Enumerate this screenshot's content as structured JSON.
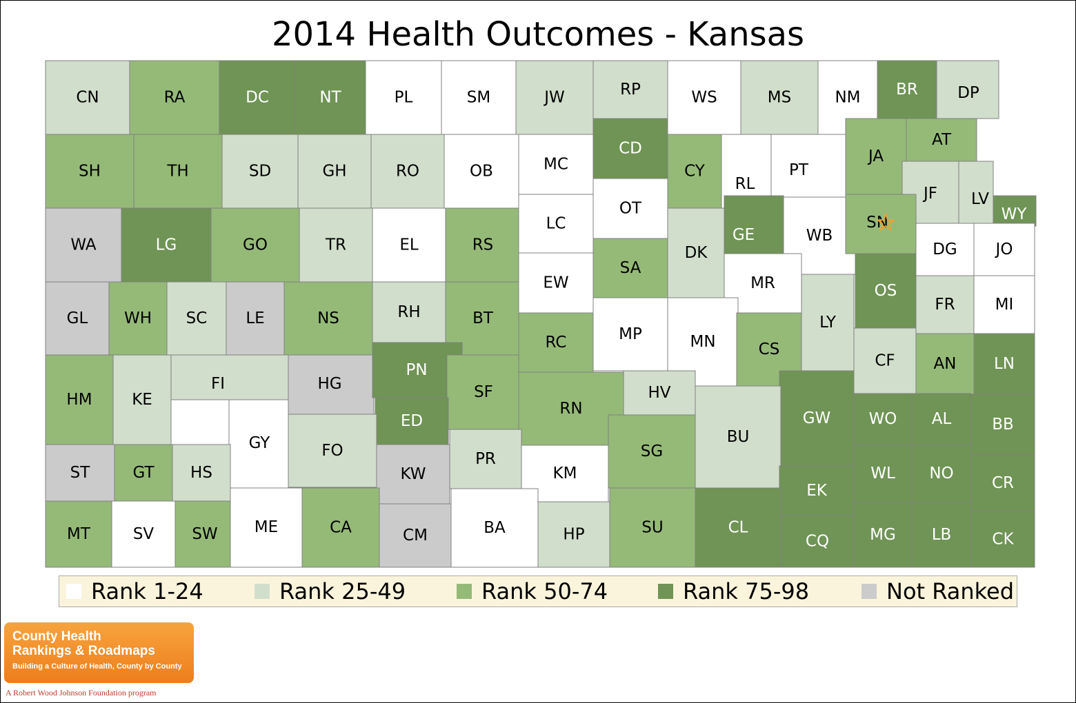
{
  "title": "2014 Health Outcomes - Kansas",
  "colors": {
    "r1": "#ffffff",
    "r2": "#d1decb",
    "r3": "#95ba78",
    "r4": "#6f9455",
    "nr": "#cbcbcb",
    "border": "#808080"
  },
  "legend": [
    {
      "label": "Rank 1-24",
      "cls": "r1"
    },
    {
      "label": "Rank 25-49",
      "cls": "r2"
    },
    {
      "label": "Rank 50-74",
      "cls": "r3"
    },
    {
      "label": "Rank 75-98",
      "cls": "r4"
    },
    {
      "label": "Not Ranked",
      "cls": "nr"
    }
  ],
  "counties": [
    {
      "code": "CN",
      "cls": "r2"
    },
    {
      "code": "RA",
      "cls": "r3"
    },
    {
      "code": "DC",
      "cls": "r4"
    },
    {
      "code": "NT",
      "cls": "r4"
    },
    {
      "code": "PL",
      "cls": "r1"
    },
    {
      "code": "SM",
      "cls": "r1"
    },
    {
      "code": "JW",
      "cls": "r2"
    },
    {
      "code": "RP",
      "cls": "r2"
    },
    {
      "code": "WS",
      "cls": "r1"
    },
    {
      "code": "MS",
      "cls": "r2"
    },
    {
      "code": "NM",
      "cls": "r1"
    },
    {
      "code": "BR",
      "cls": "r4"
    },
    {
      "code": "DP",
      "cls": "r2"
    },
    {
      "code": "SH",
      "cls": "r3"
    },
    {
      "code": "TH",
      "cls": "r3"
    },
    {
      "code": "SD",
      "cls": "r2"
    },
    {
      "code": "GH",
      "cls": "r2"
    },
    {
      "code": "RO",
      "cls": "r2"
    },
    {
      "code": "OB",
      "cls": "r1"
    },
    {
      "code": "MC",
      "cls": "r1"
    },
    {
      "code": "CD",
      "cls": "r4"
    },
    {
      "code": "CY",
      "cls": "r3"
    },
    {
      "code": "RL",
      "cls": "r1"
    },
    {
      "code": "PT",
      "cls": "r1"
    },
    {
      "code": "JA",
      "cls": "r3"
    },
    {
      "code": "AT",
      "cls": "r3"
    },
    {
      "code": "JF",
      "cls": "r2"
    },
    {
      "code": "LV",
      "cls": "r2"
    },
    {
      "code": "WY",
      "cls": "r4"
    },
    {
      "code": "WA",
      "cls": "nr"
    },
    {
      "code": "LG",
      "cls": "r4"
    },
    {
      "code": "GO",
      "cls": "r3"
    },
    {
      "code": "TR",
      "cls": "r2"
    },
    {
      "code": "EL",
      "cls": "r1"
    },
    {
      "code": "RS",
      "cls": "r3"
    },
    {
      "code": "LC",
      "cls": "r1"
    },
    {
      "code": "OT",
      "cls": "r1"
    },
    {
      "code": "DK",
      "cls": "r2"
    },
    {
      "code": "GE",
      "cls": "r4"
    },
    {
      "code": "WB",
      "cls": "r1"
    },
    {
      "code": "SN",
      "cls": "r3"
    },
    {
      "code": "DG",
      "cls": "r1"
    },
    {
      "code": "JO",
      "cls": "r1"
    },
    {
      "code": "GL",
      "cls": "nr"
    },
    {
      "code": "WH",
      "cls": "r3"
    },
    {
      "code": "SC",
      "cls": "r2"
    },
    {
      "code": "LE",
      "cls": "nr"
    },
    {
      "code": "NS",
      "cls": "r3"
    },
    {
      "code": "RH",
      "cls": "r2"
    },
    {
      "code": "BT",
      "cls": "r3"
    },
    {
      "code": "EW",
      "cls": "r1"
    },
    {
      "code": "SA",
      "cls": "r3"
    },
    {
      "code": "MR",
      "cls": "r1"
    },
    {
      "code": "LY",
      "cls": "r2"
    },
    {
      "code": "OS",
      "cls": "r4"
    },
    {
      "code": "FR",
      "cls": "r2"
    },
    {
      "code": "MI",
      "cls": "r1"
    },
    {
      "code": "HM",
      "cls": "r3"
    },
    {
      "code": "KE",
      "cls": "r2"
    },
    {
      "code": "FI",
      "cls": "r2"
    },
    {
      "code": "HG",
      "cls": "nr"
    },
    {
      "code": "PN",
      "cls": "r4"
    },
    {
      "code": "SF",
      "cls": "r3"
    },
    {
      "code": "RC",
      "cls": "r3"
    },
    {
      "code": "MP",
      "cls": "r1"
    },
    {
      "code": "MN",
      "cls": "r1"
    },
    {
      "code": "CS",
      "cls": "r3"
    },
    {
      "code": "CF",
      "cls": "r2"
    },
    {
      "code": "AN",
      "cls": "r3"
    },
    {
      "code": "LN",
      "cls": "r4"
    },
    {
      "code": "GY",
      "cls": "r1"
    },
    {
      "code": "ED",
      "cls": "r4"
    },
    {
      "code": "RN",
      "cls": "r3"
    },
    {
      "code": "HV",
      "cls": "r2"
    },
    {
      "code": "GW",
      "cls": "r4"
    },
    {
      "code": "WO",
      "cls": "r4"
    },
    {
      "code": "AL",
      "cls": "r4"
    },
    {
      "code": "BB",
      "cls": "r4"
    },
    {
      "code": "FO",
      "cls": "r2"
    },
    {
      "code": "BU",
      "cls": "r2"
    },
    {
      "code": "ST",
      "cls": "nr"
    },
    {
      "code": "GT",
      "cls": "r3"
    },
    {
      "code": "HS",
      "cls": "r2"
    },
    {
      "code": "KW",
      "cls": "nr"
    },
    {
      "code": "PR",
      "cls": "r2"
    },
    {
      "code": "KM",
      "cls": "r1"
    },
    {
      "code": "SG",
      "cls": "r3"
    },
    {
      "code": "EK",
      "cls": "r4"
    },
    {
      "code": "WL",
      "cls": "r4"
    },
    {
      "code": "NO",
      "cls": "r4"
    },
    {
      "code": "CR",
      "cls": "r4"
    },
    {
      "code": "MT",
      "cls": "r3"
    },
    {
      "code": "SV",
      "cls": "r1"
    },
    {
      "code": "SW",
      "cls": "r3"
    },
    {
      "code": "ME",
      "cls": "r1"
    },
    {
      "code": "CA",
      "cls": "r3"
    },
    {
      "code": "CM",
      "cls": "nr"
    },
    {
      "code": "BA",
      "cls": "r1"
    },
    {
      "code": "HP",
      "cls": "r2"
    },
    {
      "code": "SU",
      "cls": "r3"
    },
    {
      "code": "CL",
      "cls": "r4"
    },
    {
      "code": "CQ",
      "cls": "r4"
    },
    {
      "code": "MG",
      "cls": "r4"
    },
    {
      "code": "LB",
      "cls": "r4"
    },
    {
      "code": "CK",
      "cls": "r4"
    }
  ],
  "logo": {
    "line1": "County Health",
    "line2": "Rankings & Roadmaps",
    "tagline": "Building a Culture of Health, County by County",
    "sponsor": "A Robert Wood Johnson Foundation program"
  }
}
